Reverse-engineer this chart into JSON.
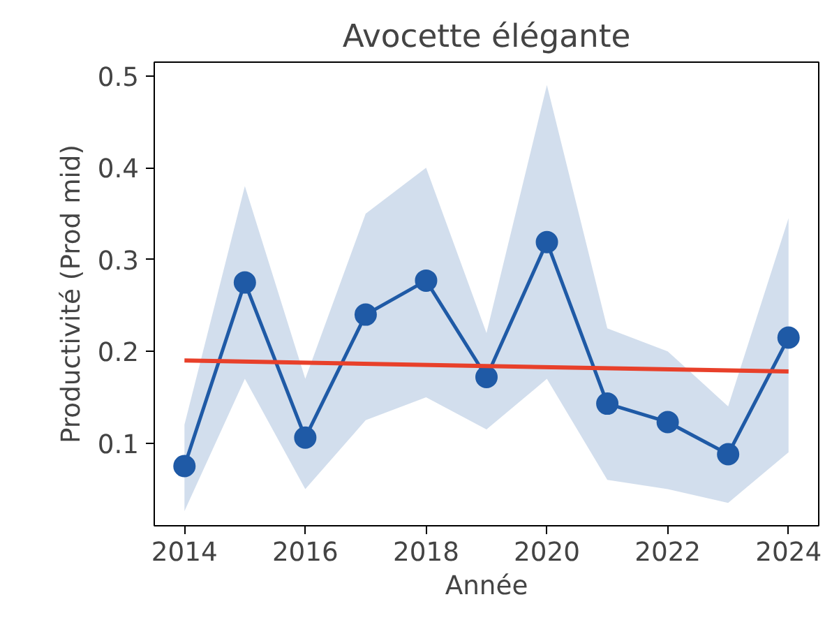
{
  "chart_data": {
    "type": "line",
    "title": "Avocette élégante",
    "xlabel": "Année",
    "ylabel": "Productivité (Prod mid)",
    "xlim": [
      2013.5,
      2024.5
    ],
    "ylim": [
      0.01,
      0.515
    ],
    "xticks": [
      2014,
      2016,
      2018,
      2020,
      2022,
      2024
    ],
    "yticks": [
      0.1,
      0.2,
      0.3,
      0.4,
      0.5
    ],
    "grid": false,
    "marker": "circle",
    "line_style": "solid",
    "series": [
      {
        "color": "#1f5aa6",
        "x": [
          2014,
          2015,
          2016,
          2017,
          2018,
          2019,
          2020,
          2021,
          2022,
          2023,
          2024
        ],
        "values": [
          0.075,
          0.275,
          0.106,
          0.24,
          0.277,
          0.172,
          0.319,
          0.143,
          0.123,
          0.088,
          0.215
        ],
        "lower": [
          0.026,
          0.17,
          0.05,
          0.125,
          0.15,
          0.115,
          0.17,
          0.06,
          0.05,
          0.035,
          0.09
        ],
        "upper": [
          0.12,
          0.38,
          0.17,
          0.35,
          0.4,
          0.22,
          0.49,
          0.225,
          0.2,
          0.14,
          0.345
        ]
      },
      {
        "type": "line",
        "color": "#e8402a",
        "marker": "none",
        "x": [
          2014,
          2024
        ],
        "values": [
          0.19,
          0.178
        ]
      }
    ]
  }
}
